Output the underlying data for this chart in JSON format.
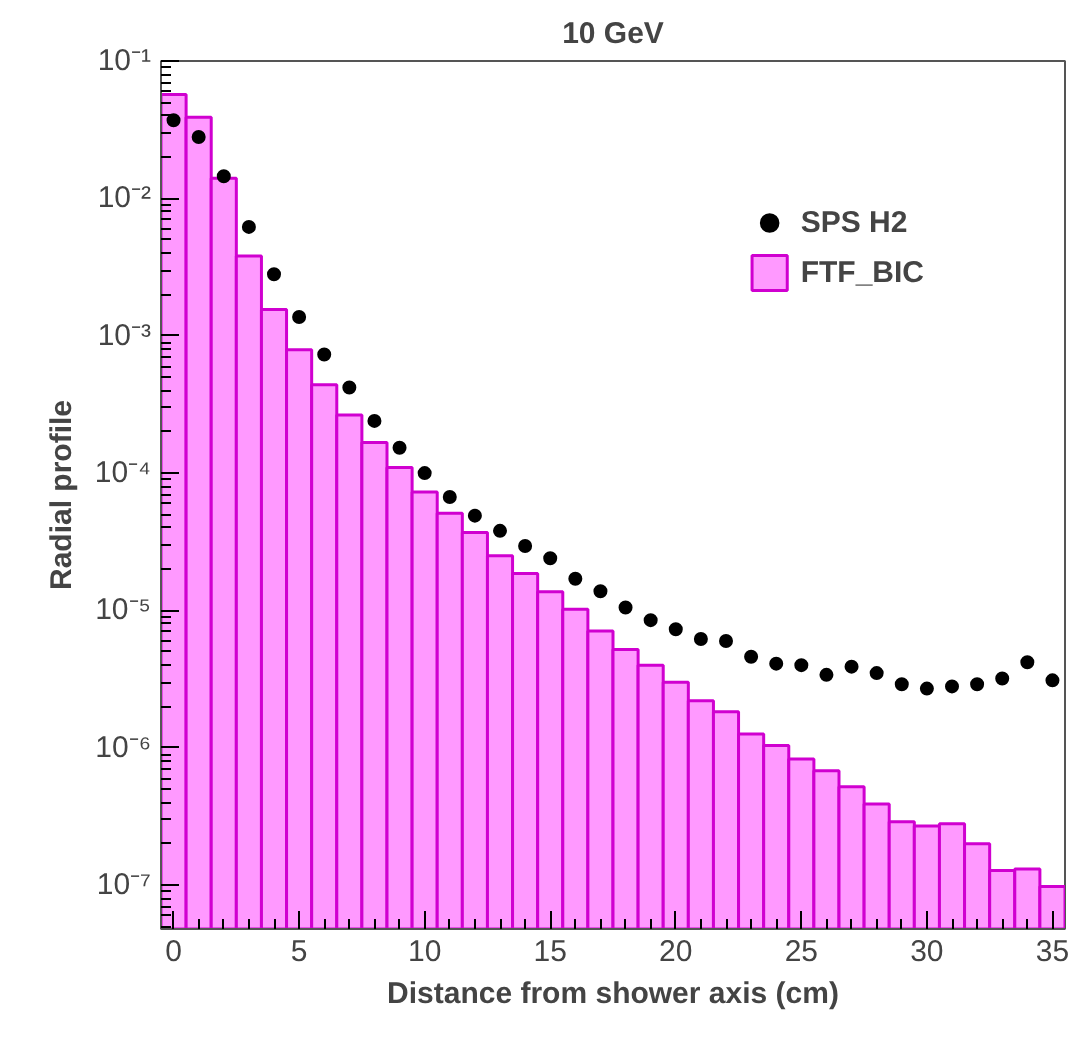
{
  "chart_data": {
    "type": "histogram",
    "title": "10 GeV",
    "xlabel": "Distance from shower axis (cm)",
    "ylabel": "Radial profile",
    "bins": [
      -0.5,
      0.5,
      1.5,
      2.5,
      3.5,
      4.5,
      5.5,
      6.5,
      7.5,
      8.5,
      9.5,
      10.5,
      11.5,
      12.5,
      13.5,
      14.5,
      15.5,
      16.5,
      17.5,
      18.5,
      19.5,
      20.5,
      21.5,
      22.5,
      23.5,
      24.5,
      25.5,
      26.5,
      27.5,
      28.5,
      29.5,
      30.5,
      31.5,
      32.5,
      33.5,
      34.5,
      35.5
    ],
    "series": [
      {
        "name": "FTF_BIC",
        "color": "#ff99ff",
        "values": [
          0.057,
          0.039,
          0.014,
          0.0038,
          0.00155,
          0.00079,
          0.00044,
          0.000265,
          0.000167,
          0.00011,
          7.3e-05,
          5.1e-05,
          3.7e-05,
          2.5e-05,
          1.86e-05,
          1.37e-05,
          1.02e-05,
          7.1e-06,
          5.2e-06,
          4e-06,
          3e-06,
          2.2e-06,
          1.83e-06,
          1.26e-06,
          1.04e-06,
          8.3e-07,
          6.8e-07,
          5.2e-07,
          3.9e-07,
          2.9e-07,
          2.7e-07,
          2.8e-07,
          2e-07,
          1.28e-07,
          1.31e-07,
          9.8e-08
        ]
      },
      {
        "type": "scatter",
        "name": "SPS H2",
        "color": "#000000",
        "x": [
          0,
          1,
          2,
          3,
          4,
          5,
          6,
          7,
          8,
          9,
          10,
          11,
          12,
          13,
          14,
          15,
          16,
          17,
          18,
          19,
          20,
          21,
          22,
          23,
          24,
          25,
          26,
          27,
          28,
          29,
          30,
          31,
          32,
          33,
          34,
          35
        ],
        "values": [
          0.037,
          0.028,
          0.0145,
          0.0062,
          0.0028,
          0.00137,
          0.00073,
          0.00042,
          0.00024,
          0.000153,
          0.0001,
          6.7e-05,
          4.9e-05,
          3.8e-05,
          2.95e-05,
          2.4e-05,
          1.7e-05,
          1.38e-05,
          1.05e-05,
          8.5e-06,
          7.3e-06,
          6.2e-06,
          6e-06,
          4.6e-06,
          4.1e-06,
          4e-06,
          3.4e-06,
          3.9e-06,
          3.5e-06,
          2.9e-06,
          2.7e-06,
          2.8e-06,
          2.9e-06,
          3.2e-06,
          4.2e-06,
          3.1e-06
        ]
      }
    ],
    "marker": "circle",
    "log": "y",
    "grid": false,
    "legend": "top right",
    "xlim": [
      -0.5,
      35.5
    ],
    "ylim": [
      4.8e-08,
      0.1
    ],
    "xticks": [
      0,
      5,
      10,
      15,
      20,
      25,
      30,
      35
    ],
    "yticks": [
      {
        "value": 1e-07,
        "label": "10⁻⁷"
      },
      {
        "value": 1e-06,
        "label": "10⁻⁶"
      },
      {
        "value": 1e-05,
        "label": "10⁻⁵"
      },
      {
        "value": 0.0001,
        "label": "10⁻⁴"
      },
      {
        "value": 0.001,
        "label": "10⁻³"
      },
      {
        "value": 0.01,
        "label": "10⁻²"
      },
      {
        "value": 0.1,
        "label": "10⁻¹"
      }
    ]
  }
}
